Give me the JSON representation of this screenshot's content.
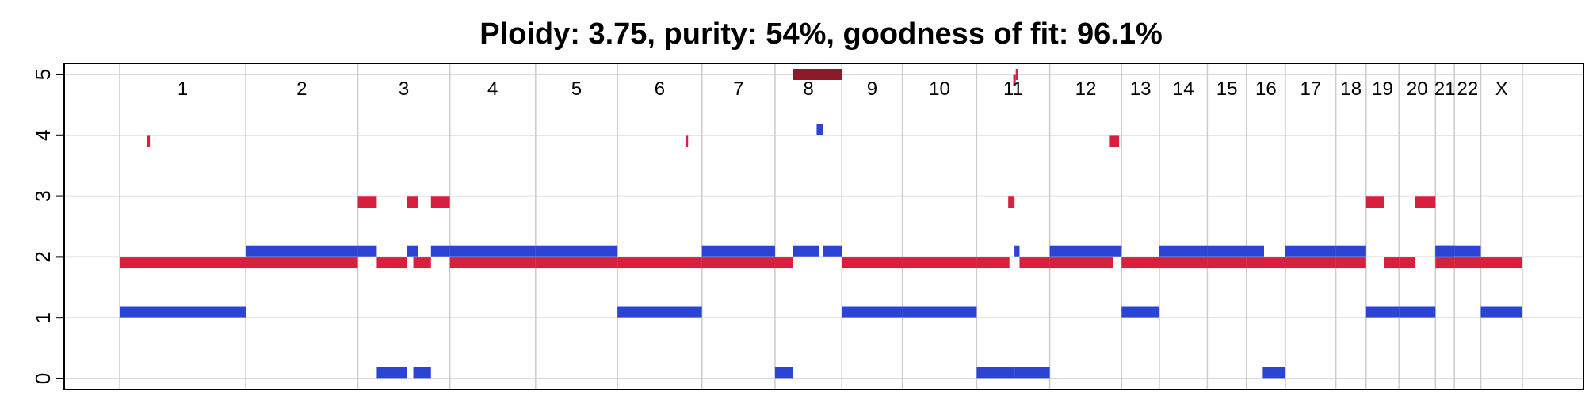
{
  "chart_data": {
    "type": "copy-number-segments",
    "title": "Ploidy: 3.75, purity: 54%, goodness of fit: 96.1%",
    "ylim": [
      0,
      5
    ],
    "yticks": [
      "0",
      "1",
      "2",
      "3",
      "4",
      "5"
    ],
    "grid": true,
    "chromosomes": [
      {
        "label": "1",
        "start": 0,
        "end": 1.0
      },
      {
        "label": "2",
        "start": 1.0,
        "end": 1.89
      },
      {
        "label": "3",
        "start": 1.89,
        "end": 2.62
      },
      {
        "label": "4",
        "start": 2.62,
        "end": 3.3
      },
      {
        "label": "5",
        "start": 3.3,
        "end": 3.95
      },
      {
        "label": "6",
        "start": 3.95,
        "end": 4.62
      },
      {
        "label": "7",
        "start": 4.62,
        "end": 5.2
      },
      {
        "label": "8",
        "start": 5.2,
        "end": 5.73
      },
      {
        "label": "9",
        "start": 5.73,
        "end": 6.21
      },
      {
        "label": "10",
        "start": 6.21,
        "end": 6.8
      },
      {
        "label": "11",
        "start": 6.8,
        "end": 7.38
      },
      {
        "label": "12",
        "start": 7.38,
        "end": 7.95
      },
      {
        "label": "13",
        "start": 7.95,
        "end": 8.25
      },
      {
        "label": "14",
        "start": 8.25,
        "end": 8.63
      },
      {
        "label": "15",
        "start": 8.63,
        "end": 8.94
      },
      {
        "label": "16",
        "start": 8.94,
        "end": 9.25
      },
      {
        "label": "17",
        "start": 9.25,
        "end": 9.65
      },
      {
        "label": "18",
        "start": 9.65,
        "end": 9.89
      },
      {
        "label": "19",
        "start": 9.89,
        "end": 10.15
      },
      {
        "label": "20",
        "start": 10.15,
        "end": 10.44
      },
      {
        "label": "21",
        "start": 10.44,
        "end": 10.59
      },
      {
        "label": "22",
        "start": 10.59,
        "end": 10.8
      },
      {
        "label": "X",
        "start": 10.8,
        "end": 11.13
      }
    ],
    "series": [
      {
        "color": "#2b44d6",
        "segments": [
          {
            "x0": 0.0,
            "x1": 1.0,
            "y": 1.1
          },
          {
            "x0": 1.0,
            "x1": 1.89,
            "y": 2.1
          },
          {
            "x0": 1.89,
            "x1": 2.04,
            "y": 2.1
          },
          {
            "x0": 2.04,
            "x1": 2.28,
            "y": 0.1
          },
          {
            "x0": 2.28,
            "x1": 2.37,
            "y": 2.1
          },
          {
            "x0": 2.33,
            "x1": 2.47,
            "y": 0.1
          },
          {
            "x0": 2.47,
            "x1": 2.62,
            "y": 2.1
          },
          {
            "x0": 2.62,
            "x1": 3.3,
            "y": 2.1
          },
          {
            "x0": 3.3,
            "x1": 3.95,
            "y": 2.1
          },
          {
            "x0": 3.95,
            "x1": 4.62,
            "y": 1.1
          },
          {
            "x0": 4.62,
            "x1": 5.2,
            "y": 2.1
          },
          {
            "x0": 5.2,
            "x1": 5.34,
            "y": 0.1
          },
          {
            "x0": 5.34,
            "x1": 5.55,
            "y": 2.1
          },
          {
            "x0": 5.53,
            "x1": 5.58,
            "y": 4.1
          },
          {
            "x0": 5.58,
            "x1": 5.73,
            "y": 2.1
          },
          {
            "x0": 5.73,
            "x1": 6.21,
            "y": 1.1
          },
          {
            "x0": 6.21,
            "x1": 6.8,
            "y": 1.1
          },
          {
            "x0": 6.8,
            "x1": 7.1,
            "y": 0.1
          },
          {
            "x0": 7.1,
            "x1": 7.14,
            "y": 2.1
          },
          {
            "x0": 7.1,
            "x1": 7.38,
            "y": 0.1
          },
          {
            "x0": 7.38,
            "x1": 7.95,
            "y": 2.1
          },
          {
            "x0": 7.95,
            "x1": 8.25,
            "y": 1.1
          },
          {
            "x0": 8.25,
            "x1": 8.63,
            "y": 2.1
          },
          {
            "x0": 8.63,
            "x1": 9.08,
            "y": 2.1
          },
          {
            "x0": 9.07,
            "x1": 9.25,
            "y": 0.1
          },
          {
            "x0": 9.25,
            "x1": 9.65,
            "y": 2.1
          },
          {
            "x0": 9.65,
            "x1": 9.89,
            "y": 2.1
          },
          {
            "x0": 9.89,
            "x1": 10.15,
            "y": 1.1
          },
          {
            "x0": 10.15,
            "x1": 10.44,
            "y": 1.1
          },
          {
            "x0": 10.44,
            "x1": 10.59,
            "y": 2.1
          },
          {
            "x0": 10.59,
            "x1": 10.8,
            "y": 2.1
          },
          {
            "x0": 10.44,
            "x1": 10.59,
            "y": 2.1
          },
          {
            "x0": 10.8,
            "x1": 11.13,
            "y": 1.1
          }
        ]
      },
      {
        "color": "#d6203f",
        "segments": [
          {
            "x0": 0.0,
            "x1": 1.0,
            "y": 1.9
          },
          {
            "x0": 0.22,
            "x1": 0.24,
            "y": 3.9
          },
          {
            "x0": 1.0,
            "x1": 1.89,
            "y": 1.9
          },
          {
            "x0": 1.89,
            "x1": 2.04,
            "y": 2.9
          },
          {
            "x0": 2.04,
            "x1": 2.28,
            "y": 1.9
          },
          {
            "x0": 2.28,
            "x1": 2.37,
            "y": 2.9
          },
          {
            "x0": 2.33,
            "x1": 2.47,
            "y": 1.9
          },
          {
            "x0": 2.47,
            "x1": 2.62,
            "y": 2.9
          },
          {
            "x0": 2.62,
            "x1": 3.3,
            "y": 1.9
          },
          {
            "x0": 3.3,
            "x1": 3.95,
            "y": 1.9
          },
          {
            "x0": 3.95,
            "x1": 4.62,
            "y": 1.9
          },
          {
            "x0": 4.49,
            "x1": 4.51,
            "y": 3.9
          },
          {
            "x0": 4.62,
            "x1": 5.2,
            "y": 1.9
          },
          {
            "x0": 5.2,
            "x1": 5.34,
            "y": 1.9
          },
          {
            "x0": 5.73,
            "x1": 6.21,
            "y": 1.9
          },
          {
            "x0": 6.21,
            "x1": 6.8,
            "y": 1.9
          },
          {
            "x0": 6.8,
            "x1": 7.06,
            "y": 1.9
          },
          {
            "x0": 7.05,
            "x1": 7.1,
            "y": 2.9
          },
          {
            "x0": 7.14,
            "x1": 7.38,
            "y": 1.9
          },
          {
            "x0": 7.38,
            "x1": 7.88,
            "y": 1.9
          },
          {
            "x0": 7.85,
            "x1": 7.93,
            "y": 3.9
          },
          {
            "x0": 7.95,
            "x1": 8.25,
            "y": 1.9
          },
          {
            "x0": 8.25,
            "x1": 8.63,
            "y": 1.9
          },
          {
            "x0": 8.63,
            "x1": 8.94,
            "y": 1.9
          },
          {
            "x0": 8.94,
            "x1": 9.25,
            "y": 1.9
          },
          {
            "x0": 9.25,
            "x1": 9.65,
            "y": 1.9
          },
          {
            "x0": 9.65,
            "x1": 9.89,
            "y": 1.9
          },
          {
            "x0": 9.89,
            "x1": 10.03,
            "y": 2.9
          },
          {
            "x0": 10.03,
            "x1": 10.15,
            "y": 1.9
          },
          {
            "x0": 10.15,
            "x1": 10.28,
            "y": 1.9
          },
          {
            "x0": 10.28,
            "x1": 10.44,
            "y": 2.9
          },
          {
            "x0": 10.44,
            "x1": 10.59,
            "y": 1.9
          },
          {
            "x0": 10.59,
            "x1": 10.8,
            "y": 1.9
          },
          {
            "x0": 10.8,
            "x1": 11.13,
            "y": 1.9
          }
        ]
      },
      {
        "color": "#8b1a2a",
        "segments": [
          {
            "x0": 5.34,
            "x1": 5.73,
            "y": 5.0
          }
        ]
      },
      {
        "color": "#d6203f",
        "segments": [
          {
            "x0": 7.09,
            "x1": 7.11,
            "y": 4.9
          },
          {
            "x0": 7.11,
            "x1": 7.13,
            "y": 5.0
          }
        ]
      }
    ]
  }
}
